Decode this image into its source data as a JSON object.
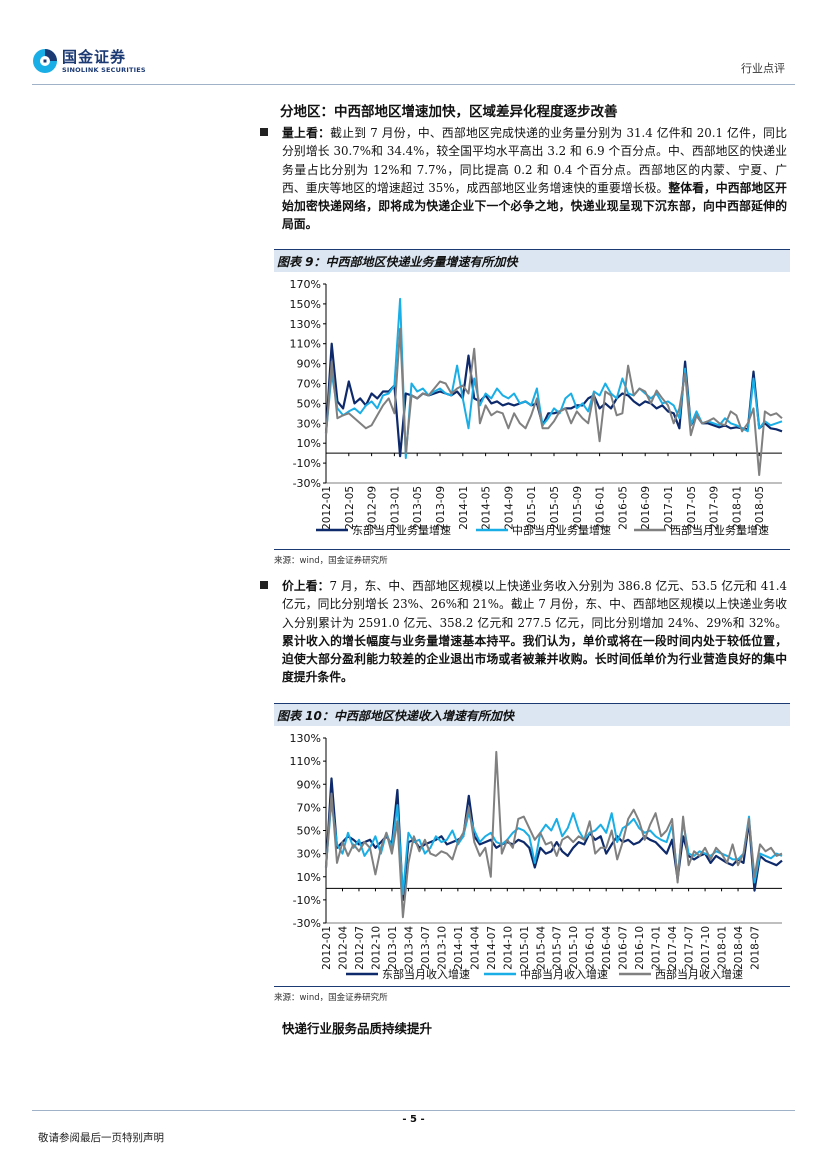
{
  "header": {
    "logo_cn": "国金证券",
    "logo_en": "SINOLINK SECURITIES",
    "doc_type": "行业点评"
  },
  "section_title": "分地区：中西部地区增速加快，区域差异化程度逐步改善",
  "para1": {
    "marker": "量上看：",
    "text": "截止到 7 月份，中、西部地区完成快递的业务量分别为 31.4 亿件和 20.1 亿件，同比分别增长 30.7%和 34.4%，较全国平均水平高出 3.2 和 6.9 个百分点。中、西部地区的快递业务量占比分别为 12%和 7.7%，同比提高 0.2 和 0.4 个百分点。西部地区的内蒙、宁夏、广西、重庆等地区的增速超过 35%，成西部地区业务增速快的重要增长极。",
    "bold": "整体看，中西部地区开始加密快递网络，即将成为快递企业下一个必争之地，快递业现呈现下沉东部，向中西部延伸的局面。"
  },
  "para2": {
    "marker": "价上看：",
    "text": "7 月，东、中、西部地区规模以上快递业务收入分别为 386.8 亿元、53.5 亿元和 41.4 亿元，同比分别增长 23%、26%和 21%。截止 7 月份，东、中、西部地区规模以上快递业务收入分别累计为 2591.0 亿元、358.2 亿元和 277.5 亿元，同比分别增加 24%、29%和 32%。",
    "bold": "累计收入的增长幅度与业务量增速基本持平。我们认为，单价或将在一段时间内处于较低位置，迫使大部分盈利能力较差的企业退出市场或者被兼并收购。长时间低单价为行业营造良好的集中度提升条件。"
  },
  "source_text": "来源：wind，国金证券研究所",
  "bottom_heading": "快递行业服务品质持续提升",
  "footer": {
    "page": "- 5 -",
    "note": "敬请参阅最后一页特别声明"
  },
  "colors": {
    "east": "#0e2a6b",
    "central": "#1aaee6",
    "west": "#808080",
    "accent": "#1b3a73"
  },
  "chart_data": [
    {
      "type": "line",
      "title": "图表 9：中西部地区快递业务量增速有所加快",
      "ylim": [
        -30,
        170
      ],
      "yticks": [
        "170%",
        "150%",
        "130%",
        "110%",
        "90%",
        "70%",
        "50%",
        "30%",
        "10%",
        "-10%",
        "-30%"
      ],
      "x_start": "2012-01",
      "xticks": [
        "2012-01",
        "2012-05",
        "2012-09",
        "2013-01",
        "2013-05",
        "2013-09",
        "2014-01",
        "2014-05",
        "2014-09",
        "2015-01",
        "2015-05",
        "2015-09",
        "2016-01",
        "2016-05",
        "2016-09",
        "2017-01",
        "2017-05",
        "2017-09",
        "2018-01",
        "2018-05"
      ],
      "series": [
        {
          "name": "东部当月业务量增速",
          "color": "#0e2a6b",
          "values": [
            20,
            110,
            52,
            45,
            72,
            50,
            55,
            48,
            60,
            55,
            62,
            62,
            68,
            -3,
            60,
            58,
            55,
            60,
            58,
            60,
            62,
            60,
            58,
            62,
            55,
            98,
            55,
            52,
            58,
            50,
            52,
            48,
            50,
            48,
            50,
            52,
            48,
            50,
            28,
            40,
            40,
            42,
            45,
            45,
            48,
            48,
            55,
            58,
            45,
            50,
            45,
            55,
            60,
            58,
            52,
            48,
            52,
            50,
            45,
            48,
            42,
            40,
            25,
            92,
            28,
            38,
            30,
            30,
            28,
            26,
            28,
            25,
            26,
            25,
            24,
            82,
            25,
            30,
            25,
            24,
            22
          ]
        },
        {
          "name": "中部当月业务量增速",
          "color": "#1aaee6",
          "values": [
            20,
            80,
            45,
            38,
            42,
            45,
            40,
            48,
            52,
            45,
            58,
            60,
            68,
            155,
            -5,
            70,
            62,
            65,
            58,
            62,
            65,
            60,
            58,
            88,
            55,
            25,
            75,
            48,
            60,
            55,
            65,
            58,
            55,
            60,
            50,
            52,
            48,
            65,
            28,
            35,
            45,
            40,
            55,
            60,
            45,
            50,
            42,
            62,
            58,
            70,
            60,
            55,
            75,
            60,
            58,
            65,
            60,
            55,
            60,
            50,
            52,
            48,
            35,
            85,
            28,
            42,
            30,
            32,
            30,
            28,
            35,
            30,
            28,
            25,
            22,
            75,
            25,
            32,
            28,
            30,
            32
          ]
        },
        {
          "name": "西部当月业务量增速",
          "color": "#808080",
          "values": [
            18,
            92,
            35,
            38,
            40,
            35,
            30,
            25,
            28,
            38,
            48,
            55,
            40,
            125,
            0,
            58,
            55,
            60,
            58,
            65,
            72,
            70,
            60,
            65,
            68,
            60,
            105,
            30,
            48,
            38,
            42,
            40,
            25,
            40,
            30,
            25,
            38,
            55,
            25,
            25,
            32,
            42,
            45,
            30,
            42,
            35,
            30,
            60,
            12,
            62,
            58,
            38,
            40,
            88,
            58,
            65,
            62,
            50,
            63,
            55,
            48,
            30,
            45,
            80,
            18,
            38,
            30,
            32,
            35,
            30,
            28,
            42,
            38,
            22,
            30,
            45,
            -22,
            42,
            38,
            40,
            35
          ]
        }
      ]
    },
    {
      "type": "line",
      "title": "图表 10：中西部地区快递收入增速有所加快",
      "ylim": [
        -30,
        130
      ],
      "yticks": [
        "130%",
        "110%",
        "90%",
        "70%",
        "50%",
        "30%",
        "10%",
        "-10%",
        "-30%"
      ],
      "x_start": "2012-01",
      "xticks": [
        "2012-01",
        "2012-04",
        "2012-07",
        "2012-10",
        "2013-01",
        "2013-04",
        "2013-07",
        "2013-10",
        "2014-01",
        "2014-04",
        "2014-07",
        "2014-10",
        "2015-01",
        "2015-04",
        "2015-07",
        "2015-10",
        "2016-01",
        "2016-04",
        "2016-07",
        "2016-10",
        "2017-01",
        "2017-04",
        "2017-07",
        "2017-10",
        "2018-01",
        "2018-04",
        "2018-07"
      ],
      "series": [
        {
          "name": "东部当月收入增速",
          "color": "#0e2a6b",
          "values": [
            18,
            95,
            35,
            40,
            45,
            42,
            38,
            40,
            42,
            35,
            40,
            45,
            38,
            85,
            -10,
            40,
            42,
            35,
            38,
            40,
            42,
            45,
            38,
            40,
            42,
            45,
            80,
            45,
            38,
            40,
            42,
            35,
            38,
            40,
            38,
            42,
            40,
            35,
            18,
            35,
            30,
            32,
            40,
            32,
            28,
            35,
            40,
            38,
            48,
            42,
            45,
            30,
            38,
            45,
            40,
            42,
            38,
            40,
            45,
            42,
            40,
            35,
            30,
            42,
            8,
            45,
            28,
            25,
            28,
            30,
            22,
            28,
            25,
            22,
            20,
            25,
            22,
            58,
            -2,
            28,
            24,
            22,
            20,
            24
          ]
        },
        {
          "name": "中部当月收入增速",
          "color": "#1aaee6",
          "values": [
            20,
            75,
            38,
            30,
            48,
            35,
            42,
            28,
            35,
            45,
            30,
            48,
            35,
            72,
            -5,
            48,
            40,
            42,
            30,
            35,
            45,
            40,
            42,
            50,
            38,
            45,
            65,
            50,
            40,
            45,
            48,
            40,
            38,
            42,
            48,
            52,
            50,
            45,
            22,
            48,
            55,
            50,
            60,
            45,
            52,
            65,
            50,
            42,
            48,
            50,
            55,
            48,
            65,
            40,
            52,
            55,
            60,
            52,
            48,
            50,
            45,
            42,
            40,
            55,
            10,
            58,
            30,
            28,
            32,
            30,
            28,
            32,
            30,
            28,
            25,
            25,
            30,
            62,
            5,
            30,
            28,
            26,
            30,
            28
          ]
        },
        {
          "name": "西部当月收入增速",
          "color": "#808080",
          "values": [
            18,
            82,
            22,
            40,
            28,
            38,
            32,
            40,
            35,
            12,
            35,
            48,
            30,
            58,
            -25,
            22,
            45,
            32,
            42,
            30,
            28,
            32,
            30,
            25,
            40,
            48,
            70,
            40,
            28,
            35,
            10,
            118,
            30,
            42,
            35,
            60,
            62,
            52,
            42,
            48,
            38,
            40,
            28,
            42,
            45,
            40,
            45,
            42,
            58,
            30,
            35,
            35,
            50,
            25,
            40,
            60,
            68,
            58,
            42,
            55,
            65,
            45,
            50,
            60,
            5,
            62,
            20,
            32,
            28,
            35,
            25,
            35,
            30,
            22,
            38,
            20,
            30,
            60,
            10,
            38,
            32,
            35,
            28,
            30
          ]
        }
      ]
    }
  ]
}
